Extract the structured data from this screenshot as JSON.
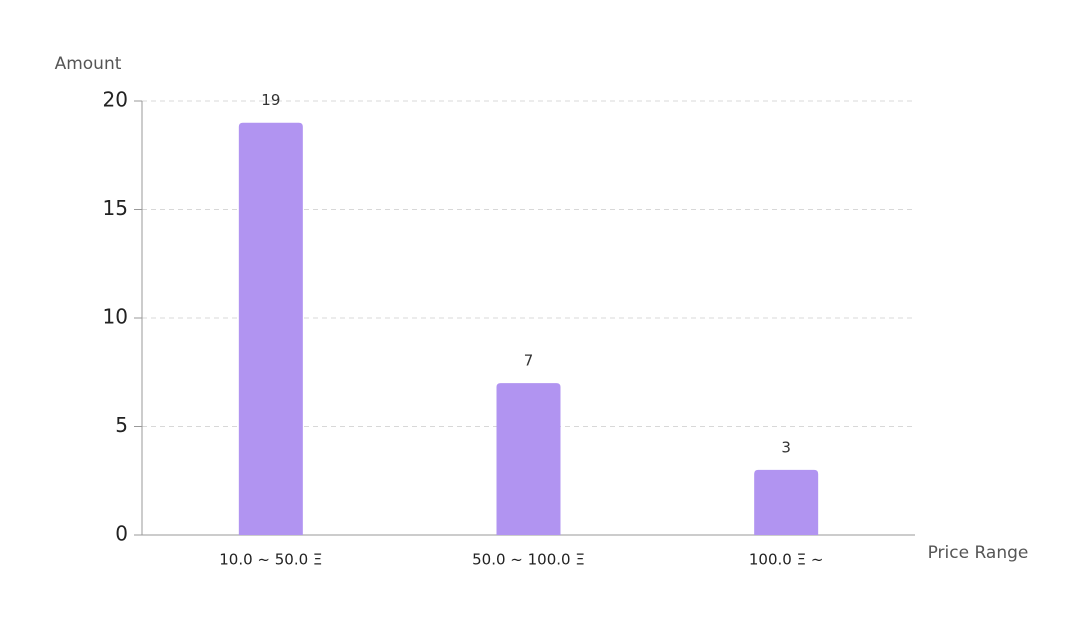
{
  "chart_data": {
    "type": "bar",
    "y_label": "Amount",
    "x_label": "Price Range",
    "categories": [
      "10.0 ~ 50.0 Ξ",
      "50.0 ~ 100.0 Ξ",
      "100.0 Ξ ~"
    ],
    "values": [
      19,
      7,
      3
    ],
    "color": "#b194f1",
    "ylim": [
      0,
      20
    ],
    "yticks": [
      0,
      5,
      10,
      15,
      20
    ],
    "grid": true
  }
}
